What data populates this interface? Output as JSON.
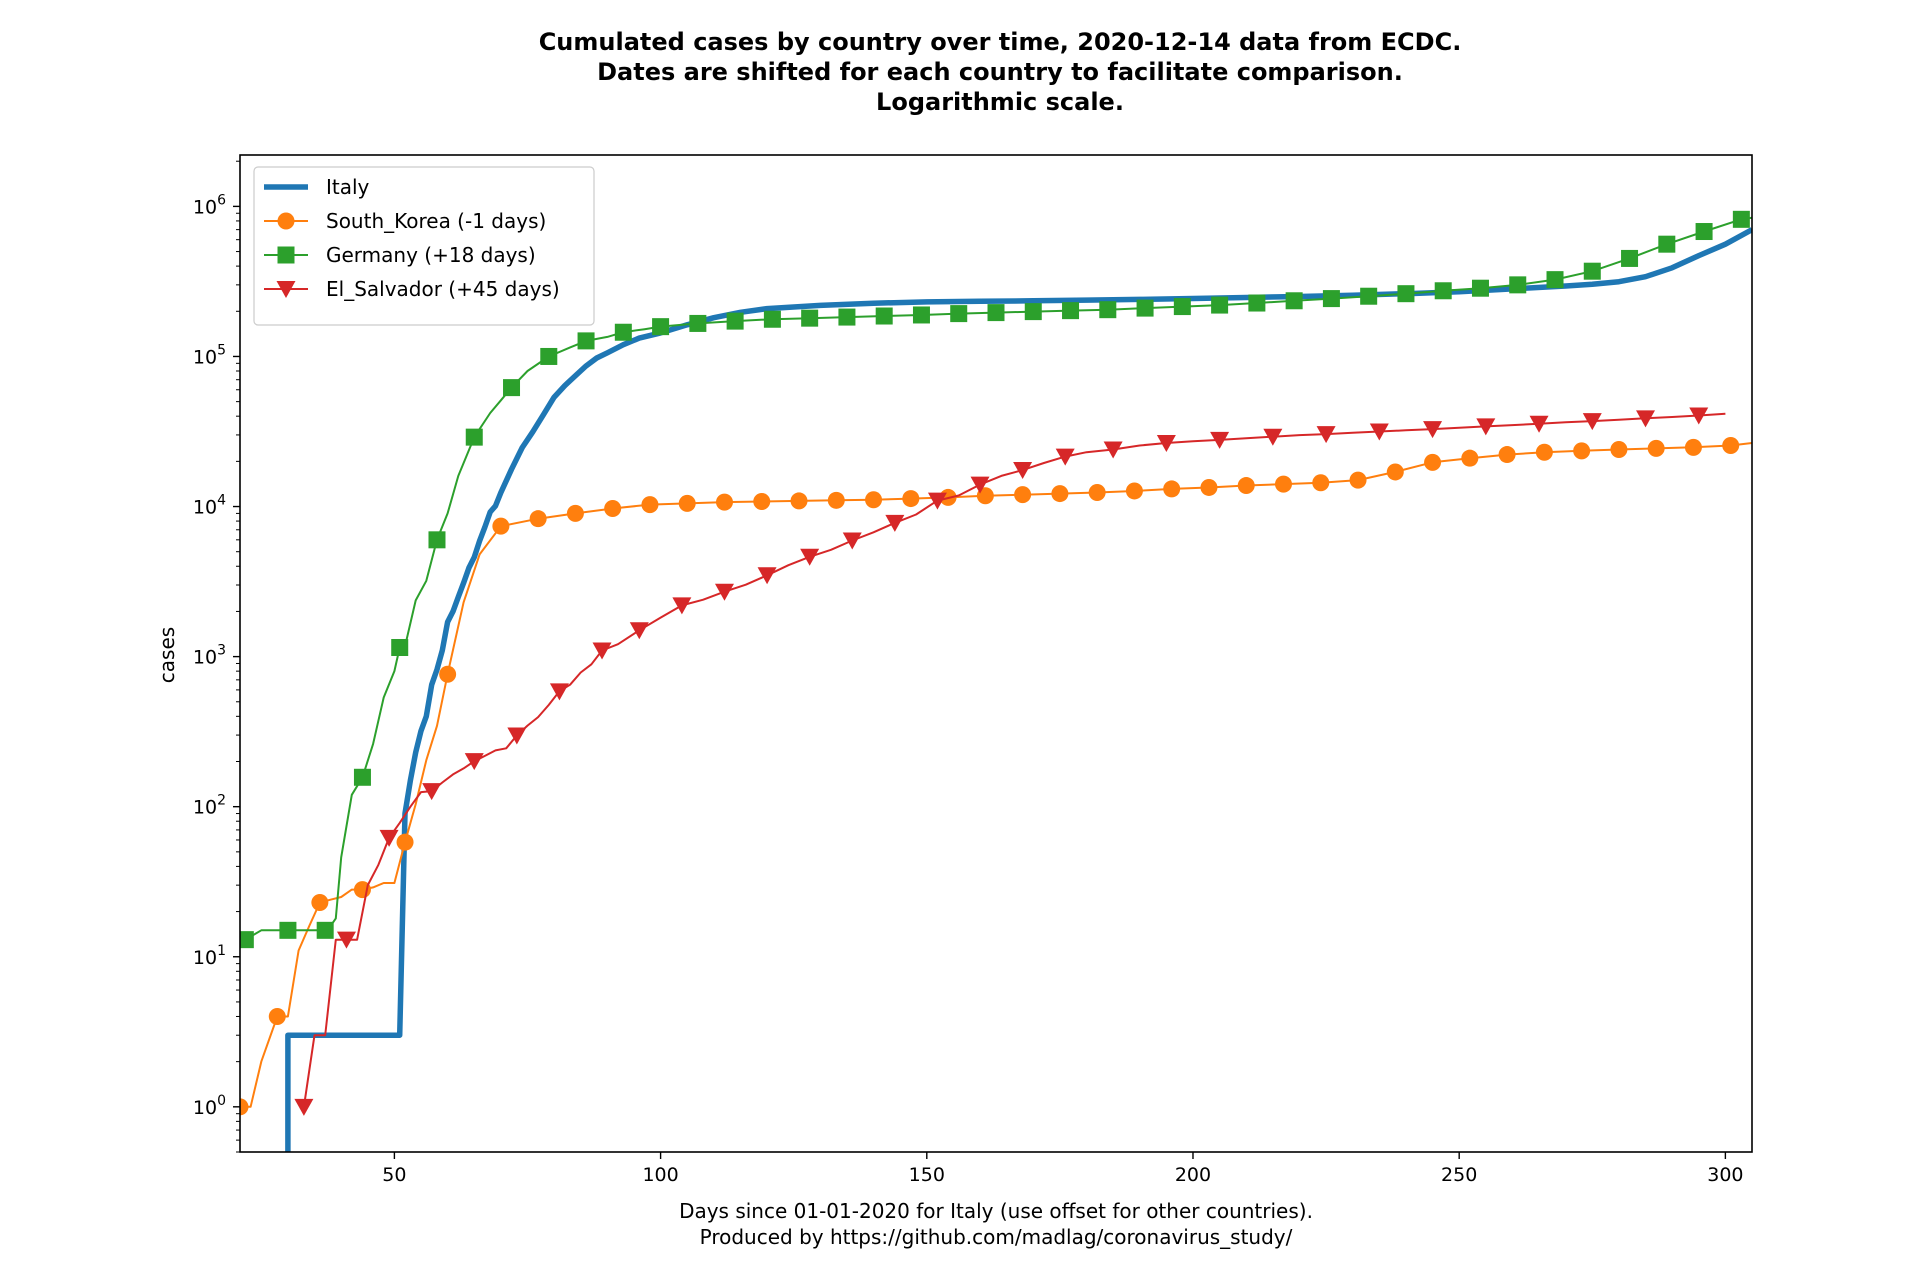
{
  "chart_data": {
    "type": "line",
    "title_lines": [
      "Cumulated cases by country over time, 2020-12-14 data from ECDC.",
      "Dates are shifted for each country to facilitate comparison.",
      "Logarithmic scale."
    ],
    "xlabel_lines": [
      "Days since 01-01-2020 for Italy (use offset for other countries).",
      "Produced by https://github.com/madlag/coronavirus_study/"
    ],
    "ylabel": "cases",
    "xlim": [
      21,
      305
    ],
    "ylim": [
      0.5,
      2200000
    ],
    "yscale": "log",
    "grid": false,
    "legend_position": "upper-left",
    "xticks": [
      50,
      100,
      150,
      200,
      250,
      300
    ],
    "xtick_labels": [
      "50",
      "100",
      "150",
      "200",
      "250",
      "300"
    ],
    "yticks": [
      1,
      10,
      100,
      1000,
      10000,
      100000,
      1000000
    ],
    "ytick_labels": [
      {
        "base": "10",
        "exp": "0"
      },
      {
        "base": "10",
        "exp": "1"
      },
      {
        "base": "10",
        "exp": "2"
      },
      {
        "base": "10",
        "exp": "3"
      },
      {
        "base": "10",
        "exp": "4"
      },
      {
        "base": "10",
        "exp": "5"
      },
      {
        "base": "10",
        "exp": "6"
      }
    ],
    "series": [
      {
        "name": "Italy",
        "color": "#1f77b4",
        "marker": "none",
        "line_style": "thick",
        "x": [
          30,
          30,
          51,
          51,
          52,
          53,
          54,
          55,
          56,
          57,
          58,
          59,
          60,
          61,
          62,
          63,
          64,
          65,
          66,
          67,
          68,
          69,
          70,
          72,
          74,
          76,
          78,
          80,
          82,
          84,
          86,
          88,
          90,
          93,
          96,
          100,
          105,
          110,
          115,
          120,
          130,
          140,
          150,
          160,
          170,
          180,
          190,
          200,
          210,
          220,
          230,
          240,
          250,
          260,
          270,
          275,
          280,
          285,
          290,
          295,
          300,
          305
        ],
        "y": [
          0.4,
          3,
          3,
          3,
          90,
          150,
          230,
          320,
          400,
          650,
          820,
          1100,
          1700,
          2000,
          2500,
          3100,
          3900,
          4600,
          5900,
          7300,
          9200,
          10100,
          12400,
          17700,
          24700,
          31500,
          41000,
          53500,
          63900,
          74400,
          86500,
          97700,
          105800,
          119800,
          132500,
          143600,
          162500,
          181200,
          197000,
          208500,
          219000,
          226500,
          231000,
          233000,
          235000,
          237500,
          240000,
          243500,
          247000,
          251000,
          256000,
          262000,
          270000,
          282000,
          295000,
          303000,
          315000,
          340000,
          390000,
          470000,
          560000,
          700000
        ]
      },
      {
        "name": "South_Korea (-1 days)",
        "color": "#ff7f0e",
        "marker": "circle",
        "line_style": "thin",
        "x": [
          21,
          23,
          25,
          28,
          30,
          32,
          34,
          36,
          38,
          40,
          42,
          44,
          46,
          48,
          50,
          52,
          54,
          56,
          58,
          60,
          63,
          66,
          70,
          77,
          84,
          91,
          98,
          105,
          112,
          119,
          126,
          133,
          140,
          147,
          154,
          161,
          168,
          175,
          182,
          189,
          196,
          203,
          210,
          217,
          224,
          231,
          238,
          245,
          252,
          259,
          266,
          273,
          280,
          287,
          294,
          301,
          305
        ],
        "y": [
          1,
          1,
          2,
          4,
          4,
          11,
          16,
          23,
          24,
          25,
          28,
          28,
          29,
          31,
          31,
          58,
          104,
          204,
          346,
          763,
          2300,
          4800,
          7400,
          8300,
          9000,
          9700,
          10300,
          10500,
          10700,
          10800,
          10900,
          11000,
          11100,
          11300,
          11500,
          11800,
          12000,
          12200,
          12400,
          12700,
          13100,
          13400,
          13800,
          14100,
          14400,
          15000,
          17000,
          19700,
          21000,
          22200,
          23000,
          23500,
          24000,
          24400,
          24800,
          25500,
          26500
        ]
      },
      {
        "name": "Germany (+18 days)",
        "color": "#2ca02c",
        "marker": "square",
        "line_style": "thin",
        "x": [
          22,
          25,
          30,
          35,
          37,
          38,
          39,
          40,
          42,
          44,
          46,
          48,
          50,
          51,
          52,
          54,
          56,
          58,
          60,
          62,
          65,
          68,
          70,
          72,
          75,
          79,
          83,
          86,
          90,
          93,
          97,
          100,
          107,
          114,
          121,
          128,
          135,
          142,
          149,
          156,
          163,
          170,
          177,
          184,
          191,
          198,
          205,
          212,
          219,
          226,
          233,
          240,
          247,
          254,
          261,
          268,
          275,
          282,
          289,
          296,
          303,
          305
        ],
        "y": [
          13,
          15,
          15,
          15,
          15,
          16,
          18,
          46,
          120,
          157,
          262,
          534,
          800,
          1150,
          1170,
          2370,
          3200,
          6000,
          9000,
          16000,
          29000,
          42000,
          51000,
          62000,
          80000,
          100000,
          115000,
          127000,
          135000,
          145000,
          152000,
          158000,
          166000,
          172000,
          177000,
          180000,
          183000,
          186000,
          189000,
          193000,
          196000,
          199000,
          202000,
          205000,
          210000,
          215000,
          220000,
          227000,
          235000,
          243000,
          252000,
          262000,
          274000,
          285000,
          300000,
          325000,
          370000,
          450000,
          560000,
          680000,
          820000,
          840000
        ]
      },
      {
        "name": "El_Salvador (+45 days)",
        "color": "#d62728",
        "marker": "triangle-down",
        "line_style": "thin",
        "x": [
          33,
          35,
          37,
          39,
          41,
          43,
          45,
          47,
          49,
          51,
          53,
          55,
          57,
          59,
          61,
          63,
          65,
          67,
          69,
          71,
          73,
          75,
          77,
          79,
          81,
          83,
          85,
          87,
          89,
          92,
          96,
          100,
          104,
          108,
          112,
          116,
          120,
          124,
          128,
          132,
          136,
          140,
          144,
          148,
          152,
          156,
          160,
          164,
          168,
          172,
          176,
          180,
          185,
          190,
          195,
          200,
          205,
          210,
          215,
          220,
          225,
          230,
          235,
          240,
          245,
          250,
          255,
          260,
          265,
          270,
          275,
          280,
          285,
          290,
          295,
          300
        ],
        "y": [
          1,
          3,
          3,
          13,
          13,
          13,
          30,
          41,
          62,
          78,
          100,
          125,
          127,
          145,
          164,
          180,
          201,
          218,
          237,
          245,
          298,
          347,
          395,
          477,
          587,
          650,
          784,
          889,
          1098,
          1210,
          1498,
          1819,
          2194,
          2395,
          2705,
          3015,
          3481,
          4066,
          4626,
          5150,
          5934,
          6736,
          7777,
          8844,
          10957,
          11846,
          14000,
          16000,
          17500,
          19500,
          21500,
          23000,
          24000,
          25500,
          26500,
          27200,
          27800,
          28500,
          29200,
          29900,
          30400,
          31000,
          31600,
          32200,
          32800,
          33500,
          34200,
          34900,
          35600,
          36400,
          37100,
          37900,
          38700,
          39500,
          40400,
          41500
        ]
      }
    ]
  }
}
